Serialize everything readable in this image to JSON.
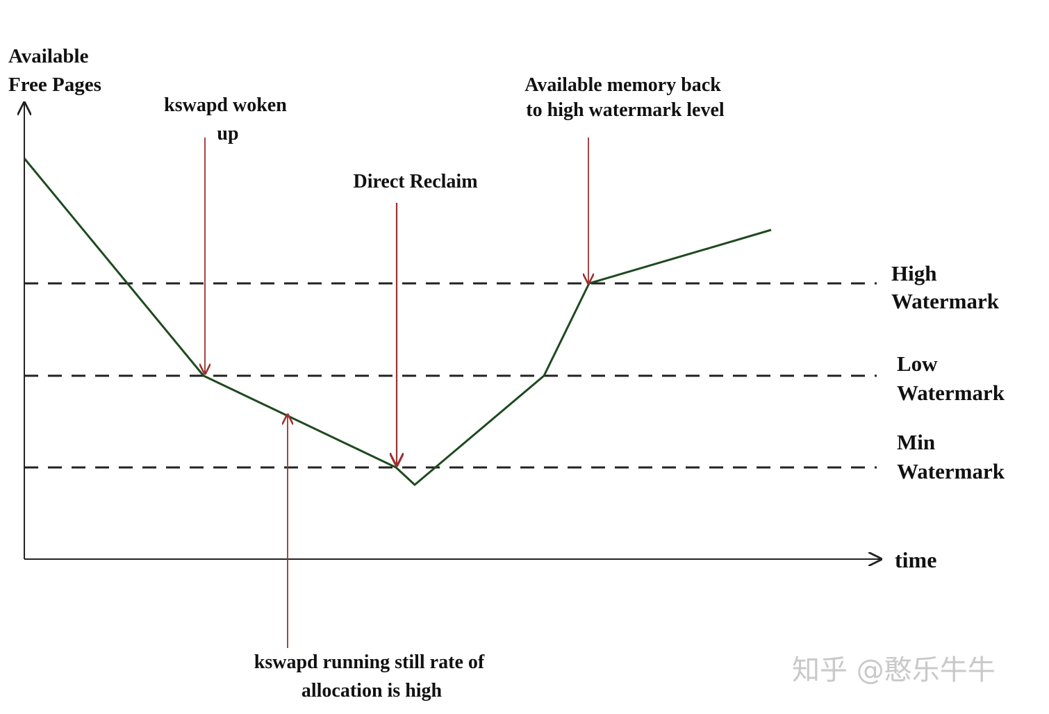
{
  "y_axis_label": [
    "Available",
    "Free Pages"
  ],
  "x_axis_label": "time",
  "watermarks": {
    "high": [
      "High",
      "Watermark"
    ],
    "low": [
      "Low",
      "Watermark"
    ],
    "min": [
      "Min",
      "Watermark"
    ]
  },
  "annotations": {
    "kswapd_woken": [
      "kswapd woken",
      "up"
    ],
    "direct_reclaim": [
      "Direct Reclaim"
    ],
    "back_to_high": [
      "Available memory back",
      "to high watermark level"
    ],
    "kswapd_running": [
      "kswapd running still rate of",
      "allocation is high"
    ]
  },
  "colors": {
    "curve": "#1f4a20",
    "arrow": "#9a3030",
    "dashed": "#222222",
    "axis": "#222222"
  },
  "site_watermark": "知乎 @憨乐牛牛"
}
